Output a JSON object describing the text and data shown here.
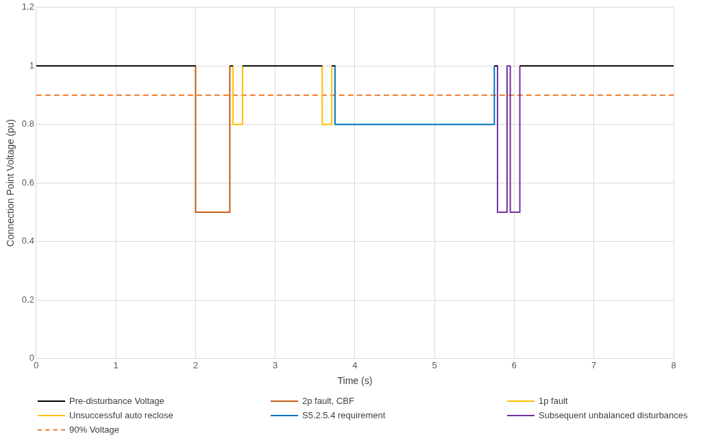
{
  "chart_data": {
    "type": "line",
    "xlabel": "Time (s)",
    "ylabel": "Connection Point Voltage (pu)",
    "xlim": [
      0,
      8
    ],
    "xticks": [
      0,
      1,
      2,
      3,
      4,
      5,
      6,
      7,
      8
    ],
    "ylim": [
      0,
      1.2
    ],
    "yticks": [
      0,
      0.2,
      0.4,
      0.6,
      0.8,
      1,
      1.2
    ],
    "grid": true,
    "legend": "bottom",
    "marker": "none",
    "line_style": "solid",
    "series": [
      {
        "name": "Pre-disturbance Voltage",
        "color": "#000000",
        "x": [
          0,
          2
        ],
        "values": [
          1,
          1
        ]
      },
      {
        "color": "#000000",
        "x": [
          2.43,
          2.47
        ],
        "values": [
          1,
          1
        ]
      },
      {
        "color": "#000000",
        "x": [
          2.59,
          3.59
        ],
        "values": [
          1,
          1
        ]
      },
      {
        "color": "#000000",
        "x": [
          3.71,
          3.75
        ],
        "values": [
          1,
          1
        ]
      },
      {
        "color": "#000000",
        "x": [
          5.75,
          5.79
        ],
        "values": [
          1,
          1
        ]
      },
      {
        "color": "#000000",
        "x": [
          6.07,
          8
        ],
        "values": [
          1,
          1
        ]
      },
      {
        "name": "2p fault, CBF",
        "color": "#c55a11",
        "x": [
          2,
          2,
          2.43,
          2.43
        ],
        "values": [
          1,
          0.5,
          0.5,
          1
        ]
      },
      {
        "name": "1p fault",
        "color": "#ffc000",
        "x": [
          2.47,
          2.47,
          2.59,
          2.59
        ],
        "values": [
          1,
          0.8,
          0.8,
          1
        ]
      },
      {
        "name": "Unsuccessful auto reclose",
        "color": "#ffc000",
        "x": [
          3.59,
          3.59,
          3.71,
          3.71
        ],
        "values": [
          1,
          0.8,
          0.8,
          1
        ]
      },
      {
        "name": "S5.2.5.4 requirement",
        "color": "#0070c0",
        "x": [
          3.75,
          3.75,
          5.75,
          5.75
        ],
        "values": [
          1,
          0.8,
          0.8,
          1
        ]
      },
      {
        "name": "Subsequent unbalanced disturbances",
        "color": "#7030a0",
        "x": [
          5.79,
          5.79,
          5.91,
          5.91,
          5.95,
          5.95,
          6.07,
          6.07
        ],
        "values": [
          1,
          0.5,
          0.5,
          1,
          1,
          0.5,
          0.5,
          1
        ]
      },
      {
        "name": "90% Voltage",
        "color": "#ed7d31",
        "x": [
          0,
          8
        ],
        "values": [
          0.9,
          0.9
        ],
        "line_style": "dashed"
      }
    ]
  }
}
